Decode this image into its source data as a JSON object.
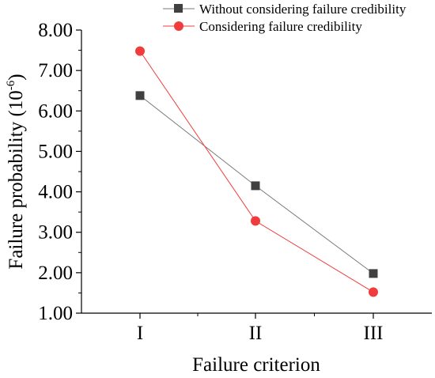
{
  "chart_data": {
    "type": "line",
    "xlabel": "Failure criterion",
    "ylabel": {
      "text": "Failure probability (10",
      "superscript": "-6",
      "suffix": ")"
    },
    "categories": [
      "I",
      "II",
      "III"
    ],
    "ylim": [
      1.0,
      8.0
    ],
    "yticks": [
      "1.00",
      "2.00",
      "3.00",
      "4.00",
      "5.00",
      "6.00",
      "7.00",
      "8.00"
    ],
    "grid": false,
    "legend_position": "top",
    "series": [
      {
        "name": "Without considering failure credibility",
        "values": [
          6.38,
          4.15,
          1.98
        ],
        "color": "#404040",
        "line_color": "#7a7a7a",
        "marker": "square"
      },
      {
        "name": "Considering failure credibility",
        "values": [
          7.48,
          3.28,
          1.52
        ],
        "color": "#f03c3c",
        "line_color": "#f03c3c",
        "marker": "circle"
      }
    ]
  }
}
